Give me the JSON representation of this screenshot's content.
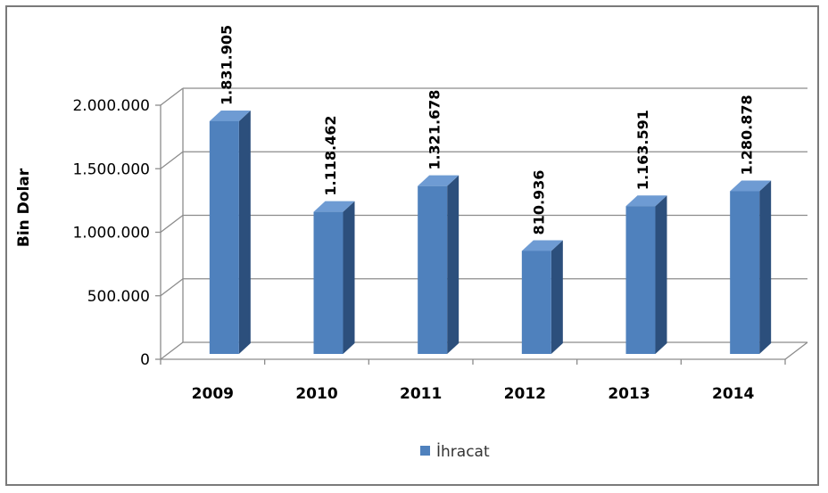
{
  "chart_data": {
    "type": "bar",
    "categories": [
      "2009",
      "2010",
      "2011",
      "2012",
      "2013",
      "2014"
    ],
    "series": [
      {
        "name": "İhracat",
        "values": [
          1831905,
          1118462,
          1321678,
          810936,
          1163591,
          1280878
        ],
        "labels": [
          "1.831.905",
          "1.118.462",
          "1.321.678",
          "810.936",
          "1.163.591",
          "1.280.878"
        ]
      }
    ],
    "ylabel": "Bin Dolar",
    "yticks": [
      0,
      500000,
      1000000,
      1500000,
      2000000
    ],
    "ytick_labels": [
      "0",
      "500.000",
      "1.000.000",
      "1.500.000",
      "2.000.000"
    ],
    "ylim": [
      0,
      2000000
    ],
    "grid": true,
    "legend_position": "bottom",
    "colors": {
      "bar_front": "#4f81bd",
      "bar_side": "#2c4f7c",
      "bar_top": "#6e9bd3"
    }
  }
}
